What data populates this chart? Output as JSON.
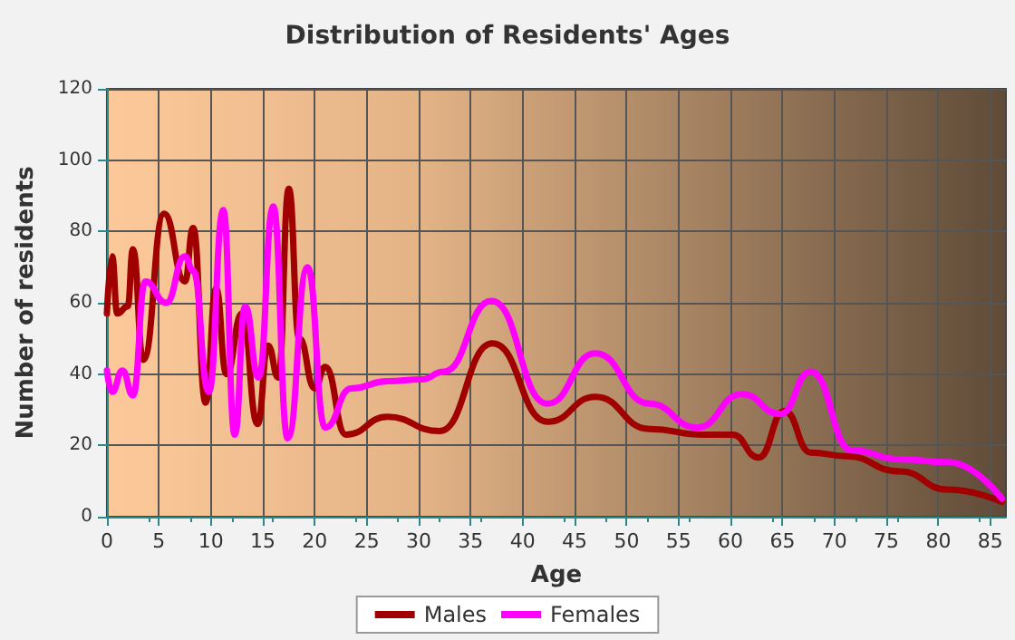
{
  "chart_data": {
    "type": "line",
    "title": "Distribution of Residents' Ages",
    "xlabel": "Age",
    "ylabel": "Number of residents",
    "xlim": [
      0,
      86.5
    ],
    "xticks": [
      0,
      5,
      10,
      15,
      20,
      25,
      30,
      35,
      40,
      45,
      50,
      55,
      60,
      65,
      70,
      75,
      80,
      85
    ],
    "ylim": [
      0,
      120
    ],
    "yticks": [
      0,
      20,
      40,
      60,
      80,
      100,
      120
    ],
    "grid": true,
    "legend": "bottom",
    "marker": "none",
    "line_style": "solid",
    "series": [
      {
        "name": "Males",
        "color": "#a00000",
        "x": [
          0,
          0.5,
          1,
          2,
          2.5,
          3.5,
          5.5,
          7.5,
          8.3,
          9.5,
          10.5,
          11.5,
          13,
          14.5,
          15.5,
          16.5,
          17.5,
          18.5,
          20,
          21,
          23,
          27,
          32,
          37.1,
          42.4,
          47,
          52.2,
          57.4,
          60.2,
          62.7,
          65.2,
          67.7,
          71.1,
          76.3,
          80.9,
          86.1
        ],
        "values": [
          57,
          73,
          57,
          59,
          75,
          44,
          85,
          66,
          81,
          32,
          64,
          40,
          57,
          26,
          48,
          39,
          92,
          50,
          36,
          42,
          23,
          28,
          24,
          48.6,
          26.6,
          33.6,
          24.6,
          23,
          23,
          16.6,
          29.7,
          18,
          17,
          12.7,
          7.6,
          4.2
        ]
      },
      {
        "name": "Females",
        "color": "#ff00ff",
        "x": [
          0,
          0.5,
          1.5,
          2.5,
          3.7,
          5.7,
          7.5,
          8.3,
          9.8,
          11.2,
          12.3,
          13.3,
          14.6,
          16,
          17.4,
          19.3,
          21,
          23.5,
          27,
          30.3,
          32.4,
          37,
          42.4,
          47,
          52.2,
          56.8,
          61.1,
          64.8,
          67.7,
          71.7,
          76.3,
          80.9,
          86.1
        ],
        "values": [
          41,
          35,
          41,
          34,
          66,
          60,
          73,
          69,
          35,
          86,
          23,
          59,
          39,
          87,
          22,
          70,
          25,
          36,
          38,
          38.5,
          40.7,
          60.5,
          31.7,
          45.8,
          31.7,
          25,
          34.4,
          28.8,
          40.7,
          18.6,
          16.1,
          15.3,
          5.1
        ]
      }
    ]
  }
}
